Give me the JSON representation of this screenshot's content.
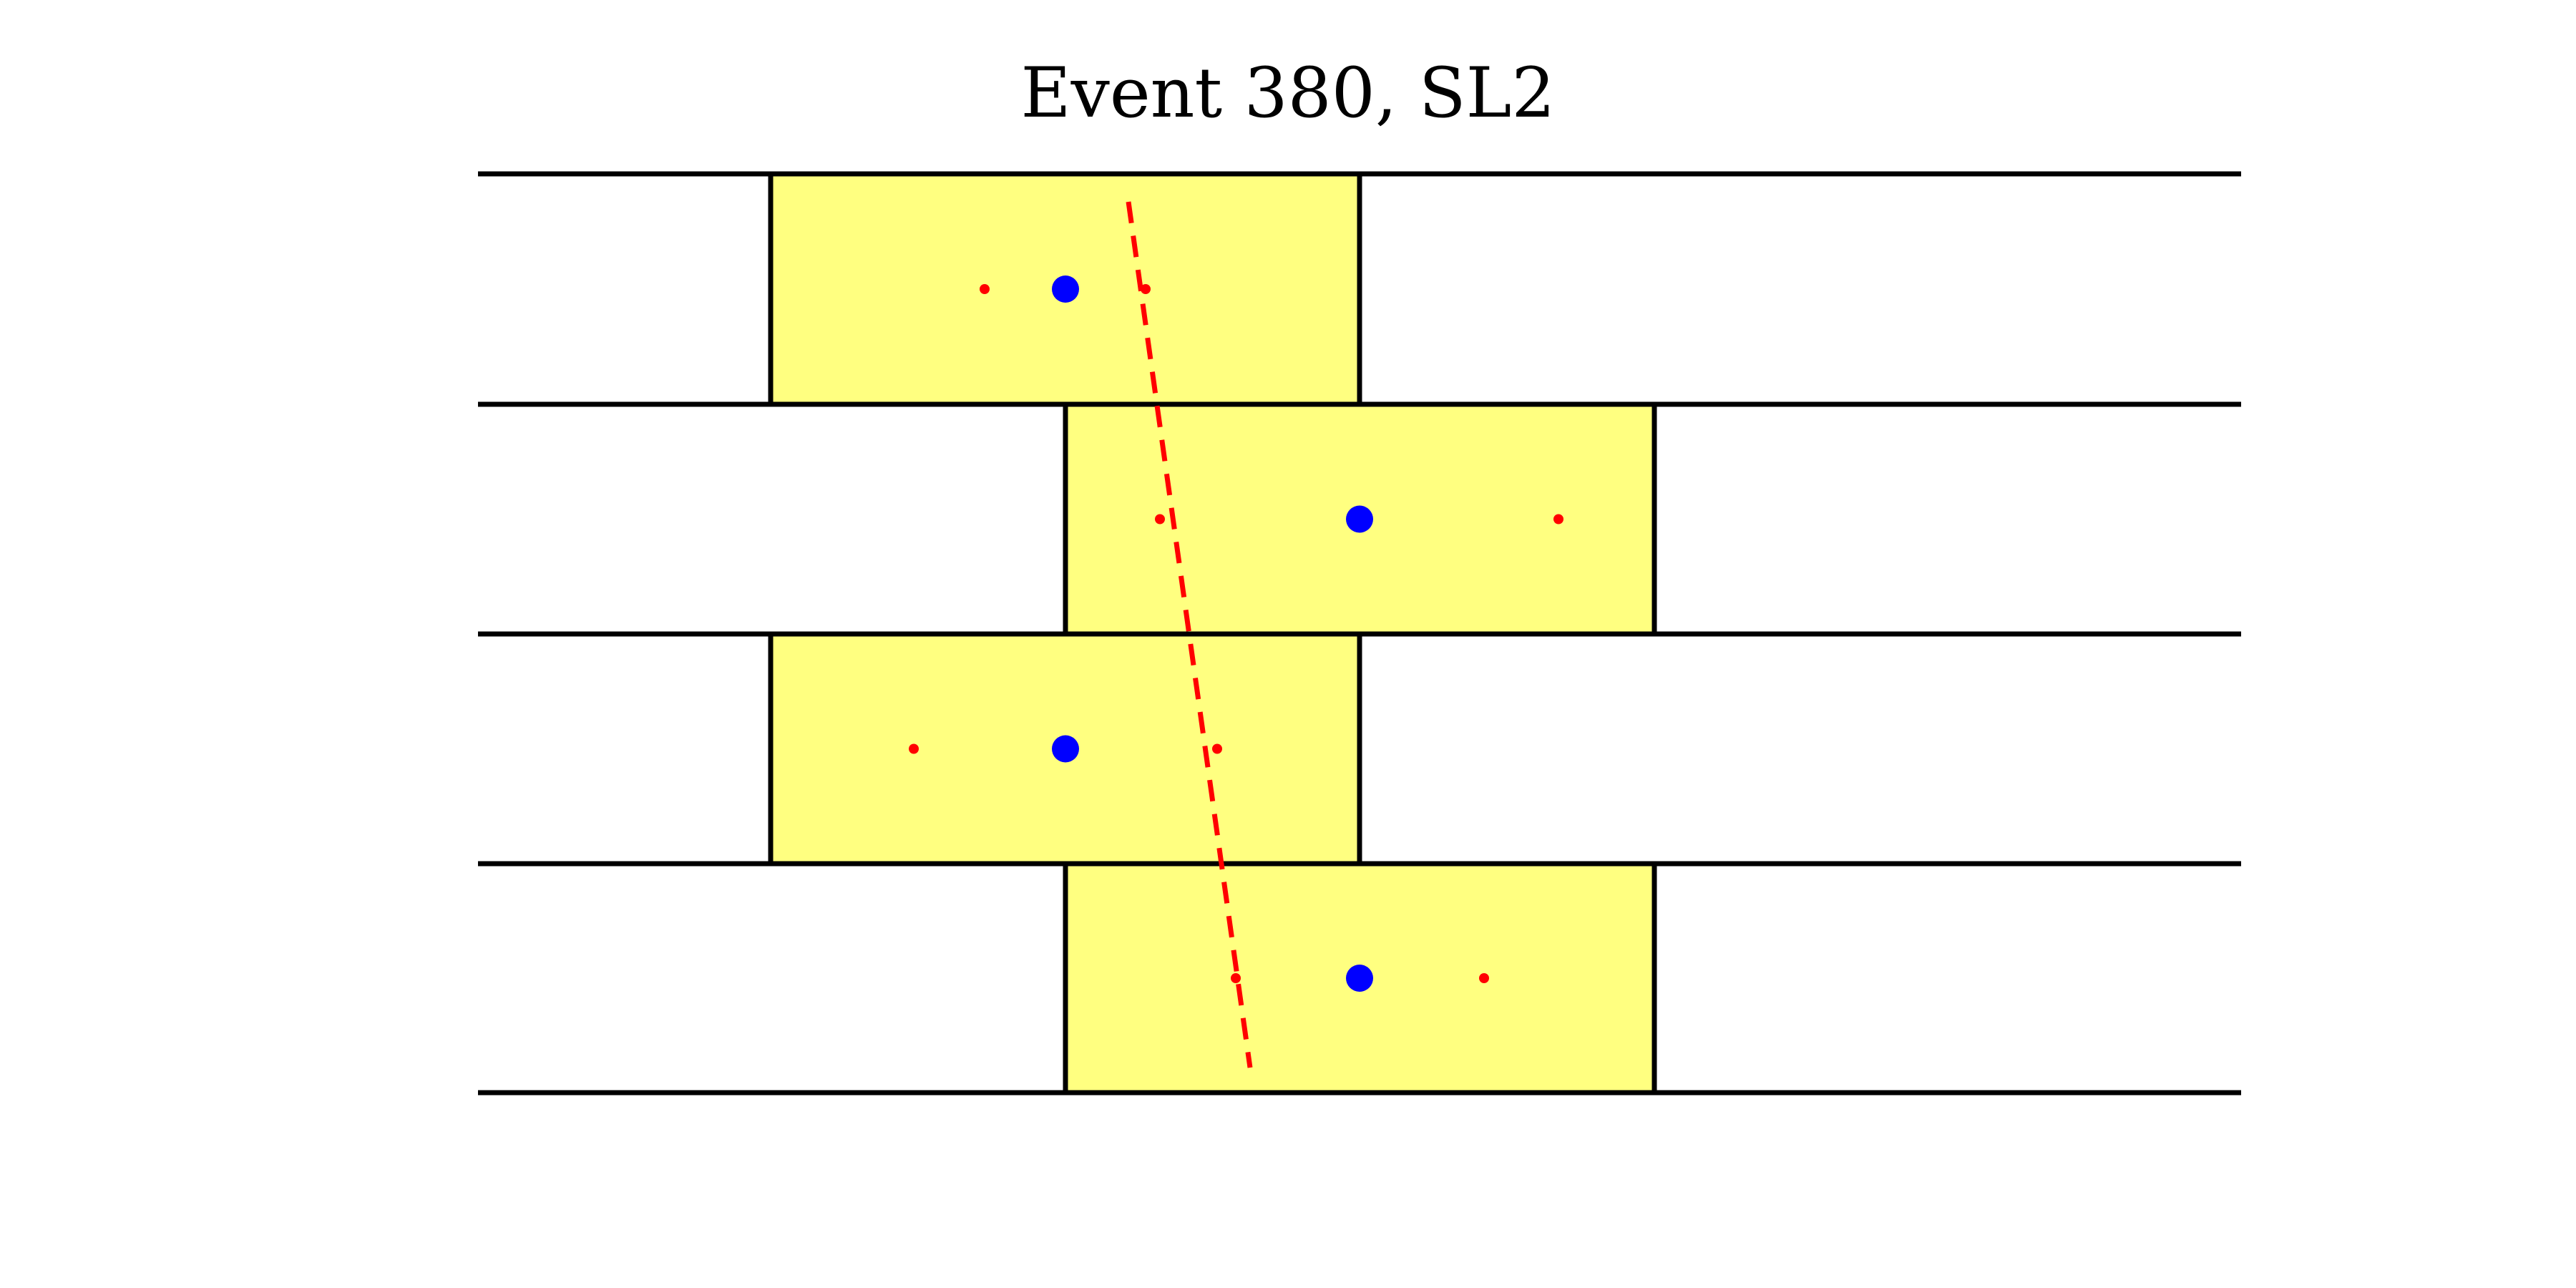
{
  "title": "Event 380, SL2",
  "colors": {
    "cell_fill": "#ffff80",
    "cell_edge": "#000000",
    "layer_line": "#000000",
    "wire_marker": "#0000ff",
    "hit_marker": "#ff0000",
    "fit_line": "#ff0000"
  },
  "layers": [
    {
      "index": 0,
      "cell": "left",
      "wire": "blue-dot",
      "hits": [
        "left-hit",
        "right-hit"
      ]
    },
    {
      "index": 1,
      "cell": "right",
      "wire": "blue-dot",
      "hits": [
        "left-hit",
        "right-hit"
      ]
    },
    {
      "index": 2,
      "cell": "left",
      "wire": "blue-dot",
      "hits": [
        "left-hit",
        "right-hit"
      ]
    },
    {
      "index": 3,
      "cell": "right",
      "wire": "blue-dot",
      "hits": [
        "left-hit",
        "right-hit"
      ]
    }
  ],
  "fit_line": {
    "style": "dashed"
  }
}
